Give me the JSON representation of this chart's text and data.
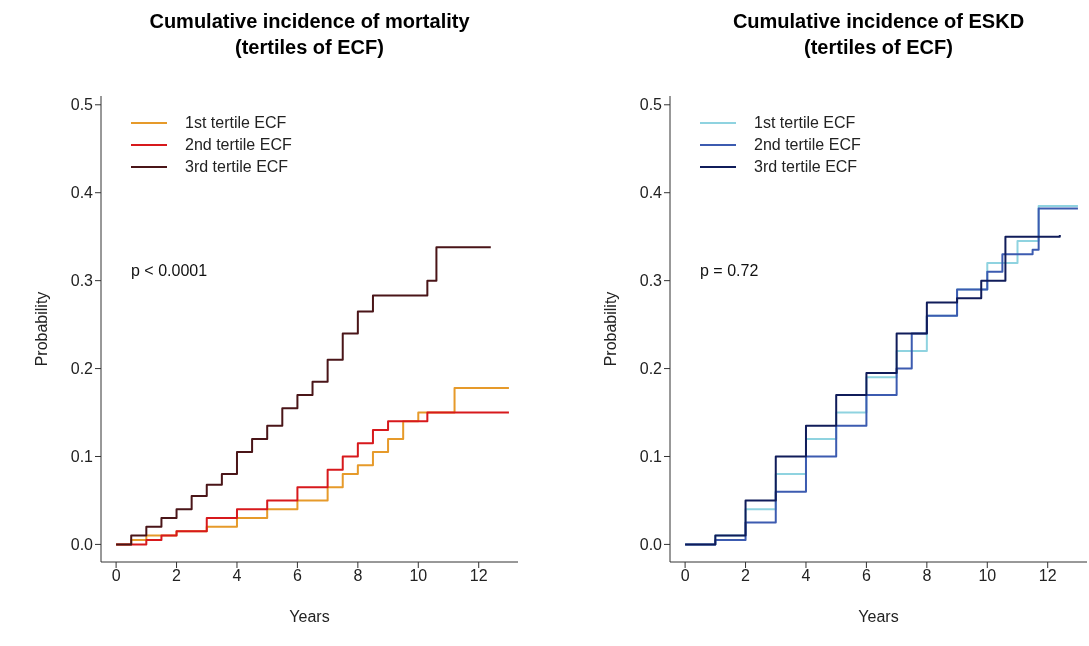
{
  "chart_data": [
    {
      "type": "step",
      "title": "Cumulative incidence of mortality\n(tertiles of ECF)",
      "xlabel": "Years",
      "ylabel": "Probability",
      "xlim": [
        -0.5,
        13.3
      ],
      "xticks": [
        0,
        2,
        4,
        6,
        8,
        10,
        12
      ],
      "ylim": [
        -0.02,
        0.51
      ],
      "yticks": [
        {
          "value": 0,
          "label": "0.0"
        },
        {
          "value": 0.1,
          "label": "0.1"
        },
        {
          "value": 0.2,
          "label": "0.2"
        },
        {
          "value": 0.3,
          "label": "0.3"
        },
        {
          "value": 0.4,
          "label": "0.4"
        },
        {
          "value": 0.5,
          "label": "0.5"
        }
      ],
      "grid": false,
      "legend": "top left",
      "annotations": [
        "p < 0.0001"
      ],
      "series": [
        {
          "name": "1st tertile ECF",
          "color": "#e69a2a",
          "x": [
            0,
            0.5,
            1,
            2,
            3,
            4,
            5,
            6,
            7,
            7.5,
            8,
            8.5,
            9,
            9.5,
            10,
            11.2,
            13
          ],
          "values": [
            0,
            0.005,
            0.01,
            0.015,
            0.02,
            0.03,
            0.04,
            0.05,
            0.065,
            0.08,
            0.09,
            0.105,
            0.12,
            0.14,
            0.15,
            0.178,
            0.178
          ]
        },
        {
          "name": "2nd tertile ECF",
          "color": "#d7191c",
          "x": [
            0,
            0.5,
            1,
            1.5,
            2,
            3,
            4,
            5,
            6,
            7,
            7.5,
            8,
            8.5,
            9,
            10.3,
            13
          ],
          "values": [
            0,
            0,
            0.005,
            0.01,
            0.015,
            0.03,
            0.04,
            0.05,
            0.065,
            0.085,
            0.1,
            0.115,
            0.13,
            0.14,
            0.15,
            0.15
          ]
        },
        {
          "name": "3rd tertile ECF",
          "color": "#4a1518",
          "x": [
            0,
            0.3,
            0.5,
            1,
            1.5,
            2,
            2.5,
            3,
            3.5,
            4,
            4.5,
            5,
            5.5,
            6,
            6.5,
            7,
            7.5,
            8,
            8.5,
            10.3,
            10.6,
            12.4
          ],
          "values": [
            0,
            0,
            0.01,
            0.02,
            0.03,
            0.04,
            0.055,
            0.068,
            0.08,
            0.105,
            0.12,
            0.135,
            0.155,
            0.17,
            0.185,
            0.21,
            0.24,
            0.265,
            0.283,
            0.3,
            0.338,
            0.338
          ]
        }
      ]
    },
    {
      "type": "step",
      "title": "Cumulative incidence of ESKD\n(tertiles of ECF)",
      "xlabel": "Years",
      "ylabel": "Probability",
      "xlim": [
        -0.5,
        13.3
      ],
      "xticks": [
        0,
        2,
        4,
        6,
        8,
        10,
        12
      ],
      "ylim": [
        -0.02,
        0.51
      ],
      "yticks": [
        {
          "value": 0,
          "label": "0.0"
        },
        {
          "value": 0.1,
          "label": "0.1"
        },
        {
          "value": 0.2,
          "label": "0.2"
        },
        {
          "value": 0.3,
          "label": "0.3"
        },
        {
          "value": 0.4,
          "label": "0.4"
        },
        {
          "value": 0.5,
          "label": "0.5"
        }
      ],
      "grid": false,
      "legend": "top left",
      "annotations": [
        "p = 0.72"
      ],
      "series": [
        {
          "name": "1st tertile ECF",
          "color": "#8fd3e0",
          "x": [
            0,
            1,
            2,
            3,
            4,
            5,
            6,
            7,
            8,
            9,
            10,
            11,
            11.7,
            13
          ],
          "values": [
            0,
            0.01,
            0.04,
            0.08,
            0.12,
            0.15,
            0.19,
            0.22,
            0.26,
            0.29,
            0.32,
            0.345,
            0.385,
            0.385
          ]
        },
        {
          "name": "2nd tertile ECF",
          "color": "#3c5bb0",
          "x": [
            0,
            1,
            2,
            3,
            4,
            5,
            6,
            7,
            7.5,
            8,
            9,
            10,
            10.5,
            11.5,
            11.7,
            13
          ],
          "values": [
            0,
            0.005,
            0.025,
            0.06,
            0.1,
            0.135,
            0.17,
            0.2,
            0.24,
            0.26,
            0.29,
            0.31,
            0.33,
            0.335,
            0.382,
            0.382
          ]
        },
        {
          "name": "3rd tertile ECF",
          "color": "#101c5a",
          "x": [
            0,
            1,
            2,
            3,
            4,
            5,
            6,
            7,
            8,
            9,
            9.8,
            10.6,
            12.4
          ],
          "values": [
            0,
            0.01,
            0.05,
            0.1,
            0.135,
            0.17,
            0.195,
            0.24,
            0.275,
            0.28,
            0.3,
            0.35,
            0.352
          ]
        }
      ]
    }
  ]
}
